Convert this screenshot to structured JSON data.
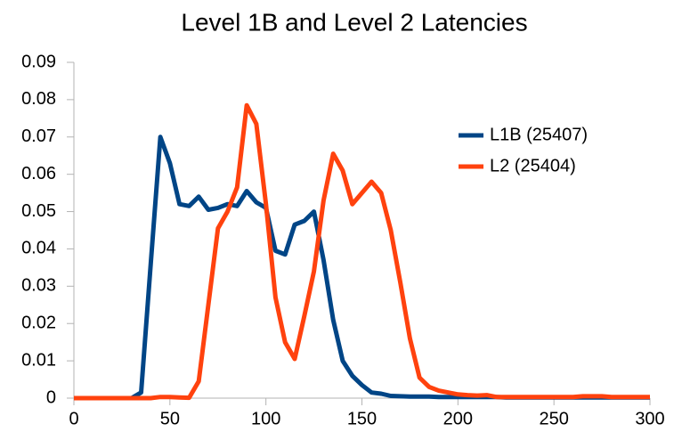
{
  "chart_data": {
    "type": "line",
    "title": "Level 1B and Level 2 Latencies",
    "x": [
      0,
      5,
      10,
      15,
      20,
      25,
      30,
      35,
      40,
      45,
      50,
      55,
      60,
      65,
      70,
      75,
      80,
      85,
      90,
      95,
      100,
      105,
      110,
      115,
      120,
      125,
      130,
      135,
      140,
      145,
      150,
      155,
      160,
      165,
      170,
      175,
      180,
      185,
      190,
      195,
      200,
      205,
      210,
      215,
      220,
      225,
      230,
      235,
      240,
      245,
      250,
      255,
      260,
      265,
      270,
      275,
      280,
      285,
      290,
      295,
      300
    ],
    "series": [
      {
        "name": "L1B (25407)",
        "color": "#004586",
        "values": [
          0,
          0,
          0,
          0,
          0,
          0,
          0,
          0.0015,
          0.036,
          0.07,
          0.063,
          0.052,
          0.0515,
          0.054,
          0.0505,
          0.051,
          0.052,
          0.0515,
          0.0555,
          0.0525,
          0.051,
          0.0395,
          0.0385,
          0.0465,
          0.0475,
          0.05,
          0.037,
          0.021,
          0.01,
          0.006,
          0.0035,
          0.0015,
          0.0012,
          0.0006,
          0.0005,
          0.0004,
          0.0004,
          0.0004,
          0.0003,
          0.0003,
          0.0003,
          0.0003,
          0.0003,
          0.0003,
          0.0003,
          0.0002,
          0.0002,
          0.0002,
          0.0002,
          0.0002,
          0.0002,
          0.0002,
          0.0002,
          0.0002,
          0.0002,
          0.0002,
          0.0002,
          0.0002,
          0.0002,
          0.0002,
          0.0002
        ]
      },
      {
        "name": "L2 (25404)",
        "color": "#ff420e",
        "values": [
          0,
          0,
          0,
          0,
          0,
          0,
          0,
          0,
          0,
          0.0003,
          0.0003,
          0.0002,
          0.0001,
          0.0045,
          0.025,
          0.0455,
          0.05,
          0.0565,
          0.0785,
          0.0735,
          0.052,
          0.027,
          0.015,
          0.0105,
          0.022,
          0.034,
          0.053,
          0.0655,
          0.061,
          0.052,
          0.055,
          0.058,
          0.055,
          0.045,
          0.031,
          0.016,
          0.0055,
          0.003,
          0.002,
          0.0015,
          0.001,
          0.0008,
          0.0007,
          0.0008,
          0.0003,
          0.0003,
          0.0003,
          0.0003,
          0.0003,
          0.0003,
          0.0003,
          0.0003,
          0.0003,
          0.0005,
          0.0005,
          0.0005,
          0.0003,
          0.0003,
          0.0003,
          0.0003,
          0.0003
        ]
      }
    ],
    "xlim": [
      0,
      300
    ],
    "xticks": [
      0,
      50,
      100,
      150,
      200,
      250,
      300
    ],
    "ylim": [
      0,
      0.09
    ],
    "yticks": [
      0,
      0.01,
      0.02,
      0.03,
      0.04,
      0.05,
      0.06,
      0.07,
      0.08,
      0.09
    ],
    "legend": "upper right"
  }
}
